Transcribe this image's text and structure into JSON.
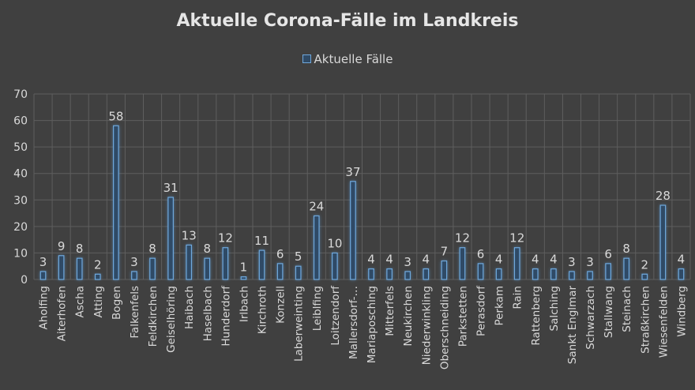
{
  "chart_data": {
    "type": "bar",
    "title": "Aktuelle Corona-Fälle im Landkreis",
    "legend_position": "top",
    "grid": true,
    "ylim": [
      0,
      70
    ],
    "yticks": [
      0,
      10,
      20,
      30,
      40,
      50,
      60,
      70
    ],
    "categories": [
      "Aholfing",
      "Aiterhofen",
      "Ascha",
      "Atting",
      "Bogen",
      "Falkenfels",
      "Feldkirchen",
      "Geiselhöring",
      "Haibach",
      "Haselbach",
      "Hunderdorf",
      "Irlbach",
      "Kirchroth",
      "Konzell",
      "Laberweinting",
      "Leiblfing",
      "Loitzendorf",
      "Mallersdorf-…",
      "Mariaposching",
      "Mitterfels",
      "Neukirchen",
      "Niederwinkling",
      "Oberschneiding",
      "Parkstetten",
      "Perasdorf",
      "Perkam",
      "Rain",
      "Rattenberg",
      "Salching",
      "Sankt Englmar",
      "Schwarzach",
      "Stallwang",
      "Steinach",
      "Straßkirchen",
      "Wiesenfelden",
      "Windberg"
    ],
    "series": [
      {
        "name": "Aktuelle Fälle",
        "values": [
          3,
          9,
          8,
          2,
          58,
          3,
          8,
          31,
          13,
          8,
          12,
          1,
          11,
          6,
          5,
          24,
          10,
          37,
          4,
          4,
          3,
          4,
          7,
          12,
          6,
          4,
          12,
          4,
          4,
          3,
          3,
          6,
          8,
          2,
          28,
          4
        ]
      }
    ]
  },
  "colors": {
    "background": "#404040",
    "bar_fill": "#2f4a66",
    "bar_stroke": "#6fa8dc",
    "glow": "#5b9bd5",
    "grid": "#5e5e5e",
    "text": "#d9d9d9"
  }
}
